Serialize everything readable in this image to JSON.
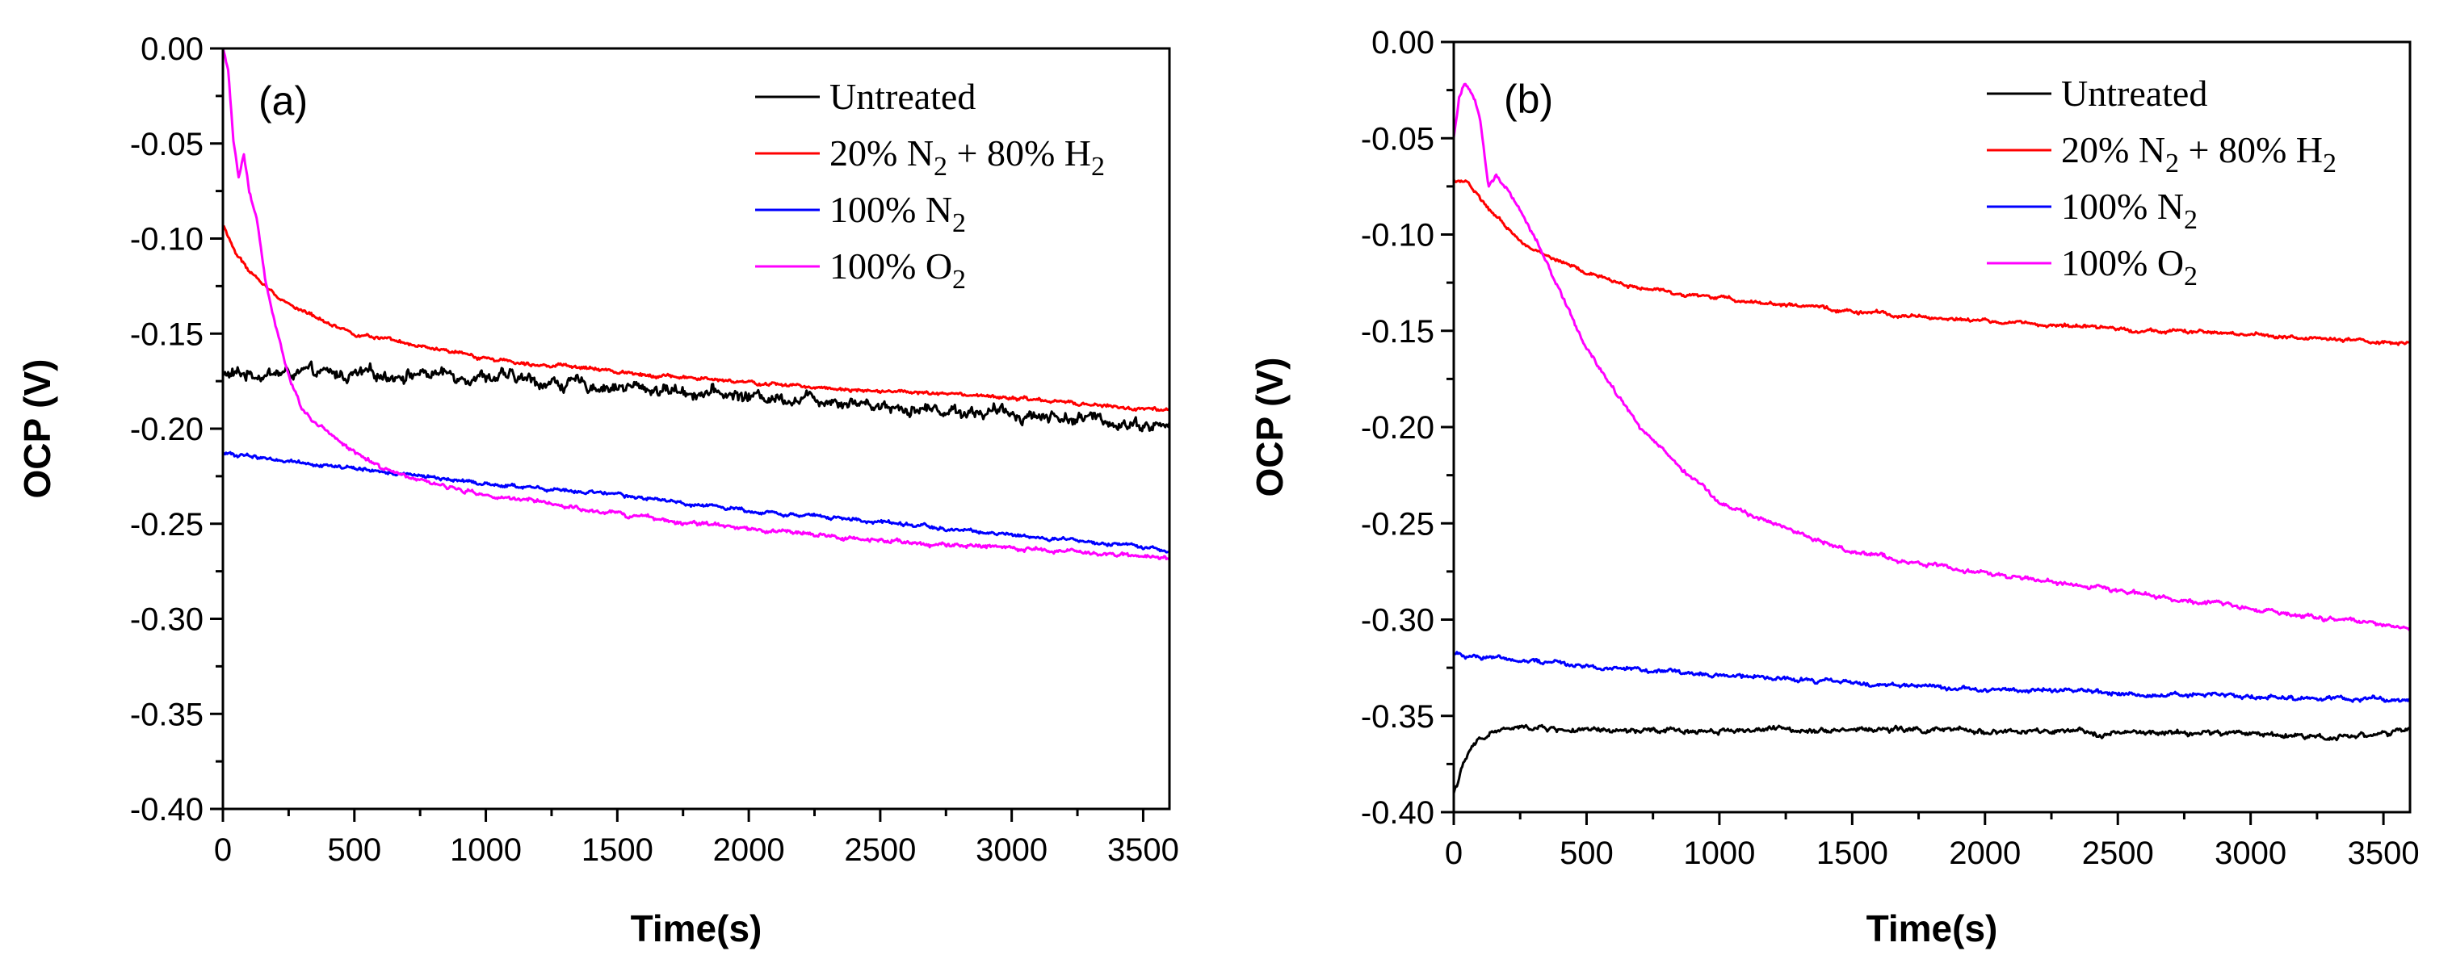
{
  "chart_data": [
    {
      "type": "line",
      "panel_label": "(a)",
      "xlabel": "Time(s)",
      "ylabel": "OCP (V)",
      "xlim": [
        0,
        3600
      ],
      "ylim": [
        -0.4,
        0.0
      ],
      "xticks": [
        0,
        500,
        1000,
        1500,
        2000,
        2500,
        3000,
        3500
      ],
      "xtick_labels": [
        "0",
        "500",
        "1000",
        "1500",
        "2000",
        "2500",
        "3000",
        "3500"
      ],
      "yticks": [
        0.0,
        -0.05,
        -0.1,
        -0.15,
        -0.2,
        -0.25,
        -0.3,
        -0.35,
        -0.4
      ],
      "ytick_labels": [
        "0.00",
        "-0.05",
        "-0.10",
        "-0.15",
        "-0.20",
        "-0.25",
        "-0.30",
        "-0.35",
        "-0.40"
      ],
      "legend_position": "top-right",
      "series": [
        {
          "name": "Untreated",
          "name_parts": [
            "Untreated"
          ],
          "color": "#000000",
          "x": [
            0,
            100,
            300,
            500,
            750,
            1000,
            1250,
            1500,
            1750,
            2000,
            2300,
            2600,
            3000,
            3300,
            3600
          ],
          "y": [
            -0.172,
            -0.171,
            -0.171,
            -0.172,
            -0.171,
            -0.172,
            -0.176,
            -0.178,
            -0.18,
            -0.183,
            -0.184,
            -0.189,
            -0.192,
            -0.195,
            -0.199
          ],
          "noise": 0.0035
        },
        {
          "name": "20% N2 + 80% H2",
          "name_parts": [
            "20% N",
            "2",
            " + 80% H",
            "2"
          ],
          "color": "#ff0000",
          "x": [
            0,
            50,
            100,
            200,
            300,
            500,
            750,
            1000,
            1500,
            2000,
            2500,
            3000,
            3600
          ],
          "y": [
            -0.093,
            -0.108,
            -0.117,
            -0.13,
            -0.138,
            -0.15,
            -0.157,
            -0.163,
            -0.17,
            -0.176,
            -0.18,
            -0.184,
            -0.191
          ],
          "noise": 0.001
        },
        {
          "name": "100% N2",
          "name_parts": [
            "100% N",
            "2"
          ],
          "color": "#0000ff",
          "x": [
            0,
            200,
            500,
            1000,
            1500,
            2000,
            2500,
            3000,
            3600
          ],
          "y": [
            -0.213,
            -0.216,
            -0.221,
            -0.229,
            -0.235,
            -0.243,
            -0.249,
            -0.256,
            -0.264
          ],
          "noise": 0.001
        },
        {
          "name": "100% O2",
          "name_parts": [
            "100% O",
            "2"
          ],
          "color": "#ff00ff",
          "x": [
            0,
            20,
            40,
            60,
            80,
            100,
            130,
            160,
            200,
            250,
            300,
            400,
            500,
            600,
            800,
            1000,
            1500,
            2000,
            2500,
            3000,
            3600
          ],
          "y": [
            0.0,
            -0.012,
            -0.05,
            -0.068,
            -0.055,
            -0.075,
            -0.09,
            -0.12,
            -0.145,
            -0.172,
            -0.19,
            -0.203,
            -0.212,
            -0.22,
            -0.229,
            -0.235,
            -0.245,
            -0.253,
            -0.259,
            -0.263,
            -0.268
          ],
          "noise": 0.0012
        }
      ]
    },
    {
      "type": "line",
      "panel_label": "(b)",
      "xlabel": "Time(s)",
      "ylabel": "OCP (V)",
      "xlim": [
        0,
        3600
      ],
      "ylim": [
        -0.4,
        0.0
      ],
      "xticks": [
        0,
        500,
        1000,
        1500,
        2000,
        2500,
        3000,
        3500
      ],
      "xtick_labels": [
        "0",
        "500",
        "1000",
        "1500",
        "2000",
        "2500",
        "3000",
        "3500"
      ],
      "yticks": [
        0.0,
        -0.05,
        -0.1,
        -0.15,
        -0.2,
        -0.25,
        -0.3,
        -0.35,
        -0.4
      ],
      "ytick_labels": [
        "0.00",
        "-0.05",
        "-0.10",
        "-0.15",
        "-0.20",
        "-0.25",
        "-0.30",
        "-0.35",
        "-0.40"
      ],
      "legend_position": "top-right",
      "series": [
        {
          "name": "Untreated",
          "name_parts": [
            "Untreated"
          ],
          "color": "#000000",
          "x": [
            0,
            30,
            60,
            100,
            150,
            200,
            300,
            500,
            800,
            1200,
            1600,
            2000,
            2500,
            3000,
            3300,
            3600
          ],
          "y": [
            -0.39,
            -0.378,
            -0.368,
            -0.362,
            -0.358,
            -0.357,
            -0.356,
            -0.358,
            -0.358,
            -0.357,
            -0.357,
            -0.358,
            -0.359,
            -0.359,
            -0.361,
            -0.358
          ],
          "noise": 0.0015
        },
        {
          "name": "20% N2 + 80% H2",
          "name_parts": [
            "20% N",
            "2",
            " + 80% H",
            "2"
          ],
          "color": "#ff0000",
          "x": [
            0,
            50,
            100,
            200,
            300,
            500,
            700,
            1000,
            1500,
            2000,
            2500,
            3000,
            3600
          ],
          "y": [
            -0.072,
            -0.072,
            -0.082,
            -0.097,
            -0.108,
            -0.12,
            -0.128,
            -0.133,
            -0.14,
            -0.145,
            -0.149,
            -0.152,
            -0.157
          ],
          "noise": 0.001
        },
        {
          "name": "100% N2",
          "name_parts": [
            "100% N",
            "2"
          ],
          "color": "#0000ff",
          "x": [
            0,
            200,
            500,
            1000,
            1500,
            2000,
            2500,
            3000,
            3600
          ],
          "y": [
            -0.318,
            -0.32,
            -0.324,
            -0.329,
            -0.333,
            -0.336,
            -0.338,
            -0.34,
            -0.342
          ],
          "noise": 0.0012
        },
        {
          "name": "100% O2",
          "name_parts": [
            "100% O",
            "2"
          ],
          "color": "#ff00ff",
          "x": [
            0,
            20,
            40,
            60,
            80,
            100,
            130,
            160,
            200,
            300,
            400,
            500,
            700,
            1000,
            1500,
            2000,
            2500,
            3000,
            3600
          ],
          "y": [
            -0.05,
            -0.03,
            -0.022,
            -0.025,
            -0.03,
            -0.04,
            -0.075,
            -0.068,
            -0.075,
            -0.1,
            -0.13,
            -0.16,
            -0.2,
            -0.24,
            -0.265,
            -0.276,
            -0.285,
            -0.294,
            -0.305
          ],
          "noise": 0.0012
        }
      ]
    }
  ]
}
